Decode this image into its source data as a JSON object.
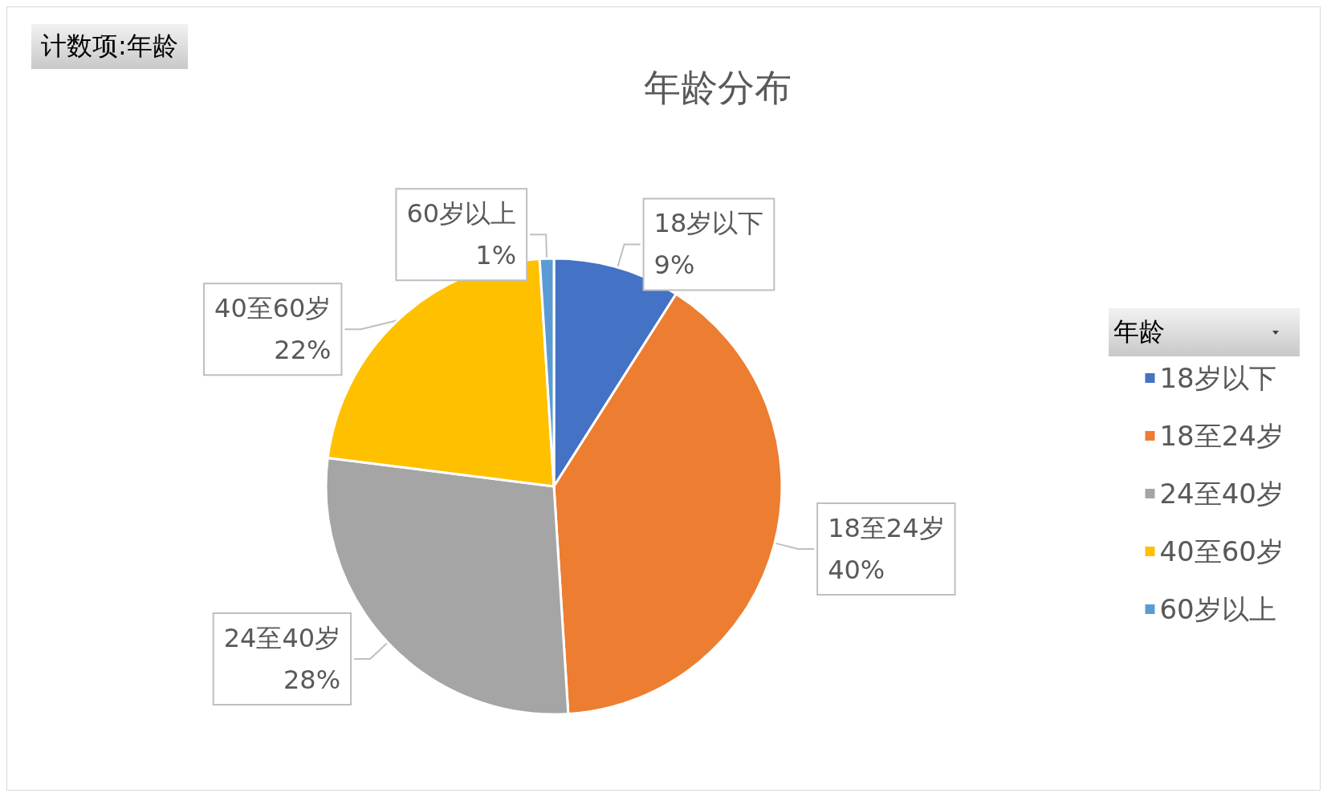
{
  "chart_data": {
    "type": "pie",
    "title": "年龄分布",
    "categories": [
      "18岁以下",
      "18至24岁",
      "24至40岁",
      "40至60岁",
      "60岁以上"
    ],
    "values": [
      9,
      40,
      28,
      22,
      1
    ],
    "value_labels": [
      "9%",
      "40%",
      "28%",
      "22%",
      "1%"
    ],
    "colors": [
      "#4472c4",
      "#ed7d31",
      "#a5a5a5",
      "#ffc000",
      "#5b9bd5"
    ],
    "legend": "right",
    "legend_title": "年龄",
    "annotations": [
      "计数项:年龄"
    ]
  }
}
